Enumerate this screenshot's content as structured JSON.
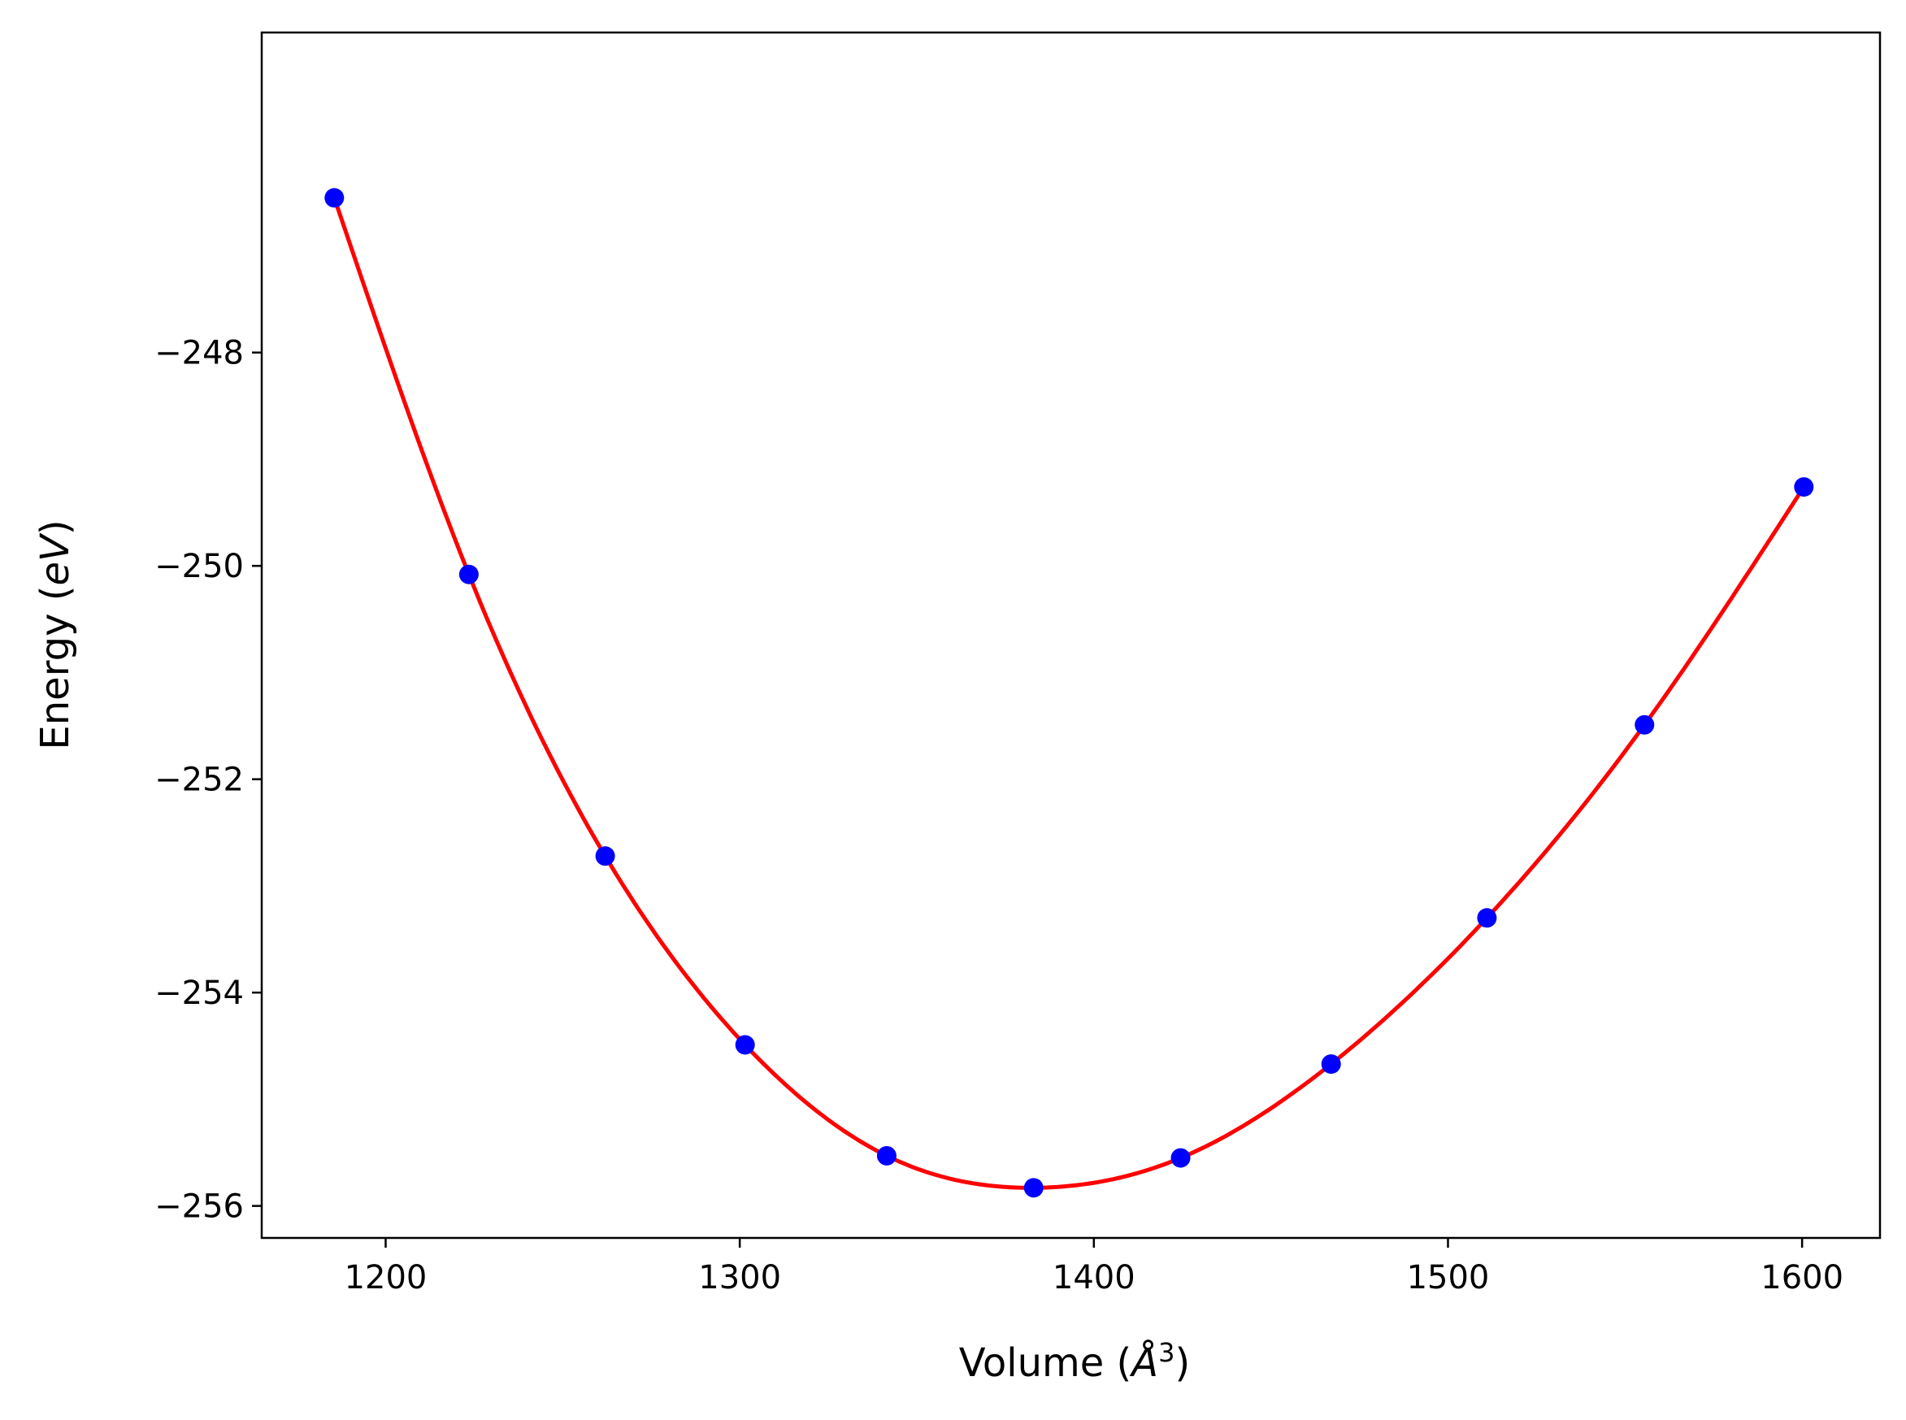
{
  "chart_data": {
    "type": "scatter",
    "title": "",
    "xlabel_parts": {
      "main": "Volume (",
      "symbol": "Å",
      "sup": "3",
      "close": ")"
    },
    "ylabel_parts": {
      "main": "Energy (",
      "symbol": "eV",
      "close": ")"
    },
    "xlim": [
      1165,
      1622
    ],
    "ylim": [
      -256.3,
      -245.0
    ],
    "xticks": [
      1200,
      1300,
      1400,
      1500,
      1600
    ],
    "yticks": [
      -248,
      -250,
      -252,
      -254,
      -256
    ],
    "xtick_labels": [
      "1200",
      "1300",
      "1400",
      "1500",
      "1600"
    ],
    "ytick_labels": [
      "−248",
      "−250",
      "−252",
      "−254",
      "−256"
    ],
    "grid": false,
    "series": [
      {
        "kind": "points",
        "color": "#0000ff",
        "x": [
          1185.5,
          1223.5,
          1262.0,
          1301.5,
          1341.5,
          1383.0,
          1424.5,
          1467.0,
          1511.0,
          1555.5,
          1600.5
        ],
        "y": [
          -246.55,
          -250.08,
          -252.72,
          -254.49,
          -255.53,
          -255.83,
          -255.55,
          -254.67,
          -253.3,
          -251.49,
          -249.26
        ]
      },
      {
        "kind": "fit-curve",
        "color": "#ff0000",
        "x": [
          1185.5,
          1223.5,
          1262.0,
          1301.5,
          1341.5,
          1383.0,
          1424.5,
          1467.0,
          1511.0,
          1555.5,
          1600.5
        ],
        "y": [
          -246.55,
          -250.08,
          -252.72,
          -254.49,
          -255.53,
          -255.83,
          -255.55,
          -254.67,
          -253.3,
          -251.49,
          -249.26
        ]
      }
    ]
  }
}
